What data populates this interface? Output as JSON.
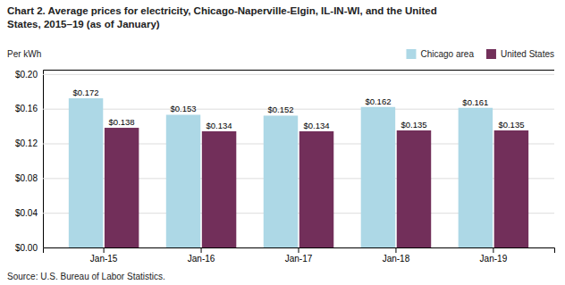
{
  "chart_data": {
    "type": "bar",
    "title": [
      "Chart 2. Average prices for electricity, Chicago-Naperville-Elgin, IL-IN-WI, and the United",
      "States, 2015–19  (as of January)"
    ],
    "ylabel": "Per kWh",
    "source": "Source: U.S. Bureau of Labor Statistics.",
    "categories": [
      "Jan-15",
      "Jan-16",
      "Jan-17",
      "Jan-18",
      "Jan-19"
    ],
    "series": [
      {
        "name": "Chicago area",
        "color": "#ADD8E6",
        "values": [
          0.172,
          0.153,
          0.152,
          0.162,
          0.161
        ],
        "value_labels": [
          "$0.172",
          "$0.153",
          "$0.152",
          "$0.162",
          "$0.161"
        ]
      },
      {
        "name": "United States",
        "color": "#722F5A",
        "values": [
          0.138,
          0.134,
          0.134,
          0.135,
          0.135
        ],
        "value_labels": [
          "$0.138",
          "$0.134",
          "$0.134",
          "$0.135",
          "$0.135"
        ]
      }
    ],
    "ylim": [
      0.0,
      0.205
    ],
    "yticks": [
      {
        "value": 0.0,
        "label": "$0.00"
      },
      {
        "value": 0.04,
        "label": "$0.04"
      },
      {
        "value": 0.08,
        "label": "$0.08"
      },
      {
        "value": 0.12,
        "label": "$0.12"
      },
      {
        "value": 0.16,
        "label": "$0.16"
      },
      {
        "value": 0.2,
        "label": "$0.20"
      }
    ],
    "grid": true,
    "legend": "upper right",
    "data_labels": true
  }
}
